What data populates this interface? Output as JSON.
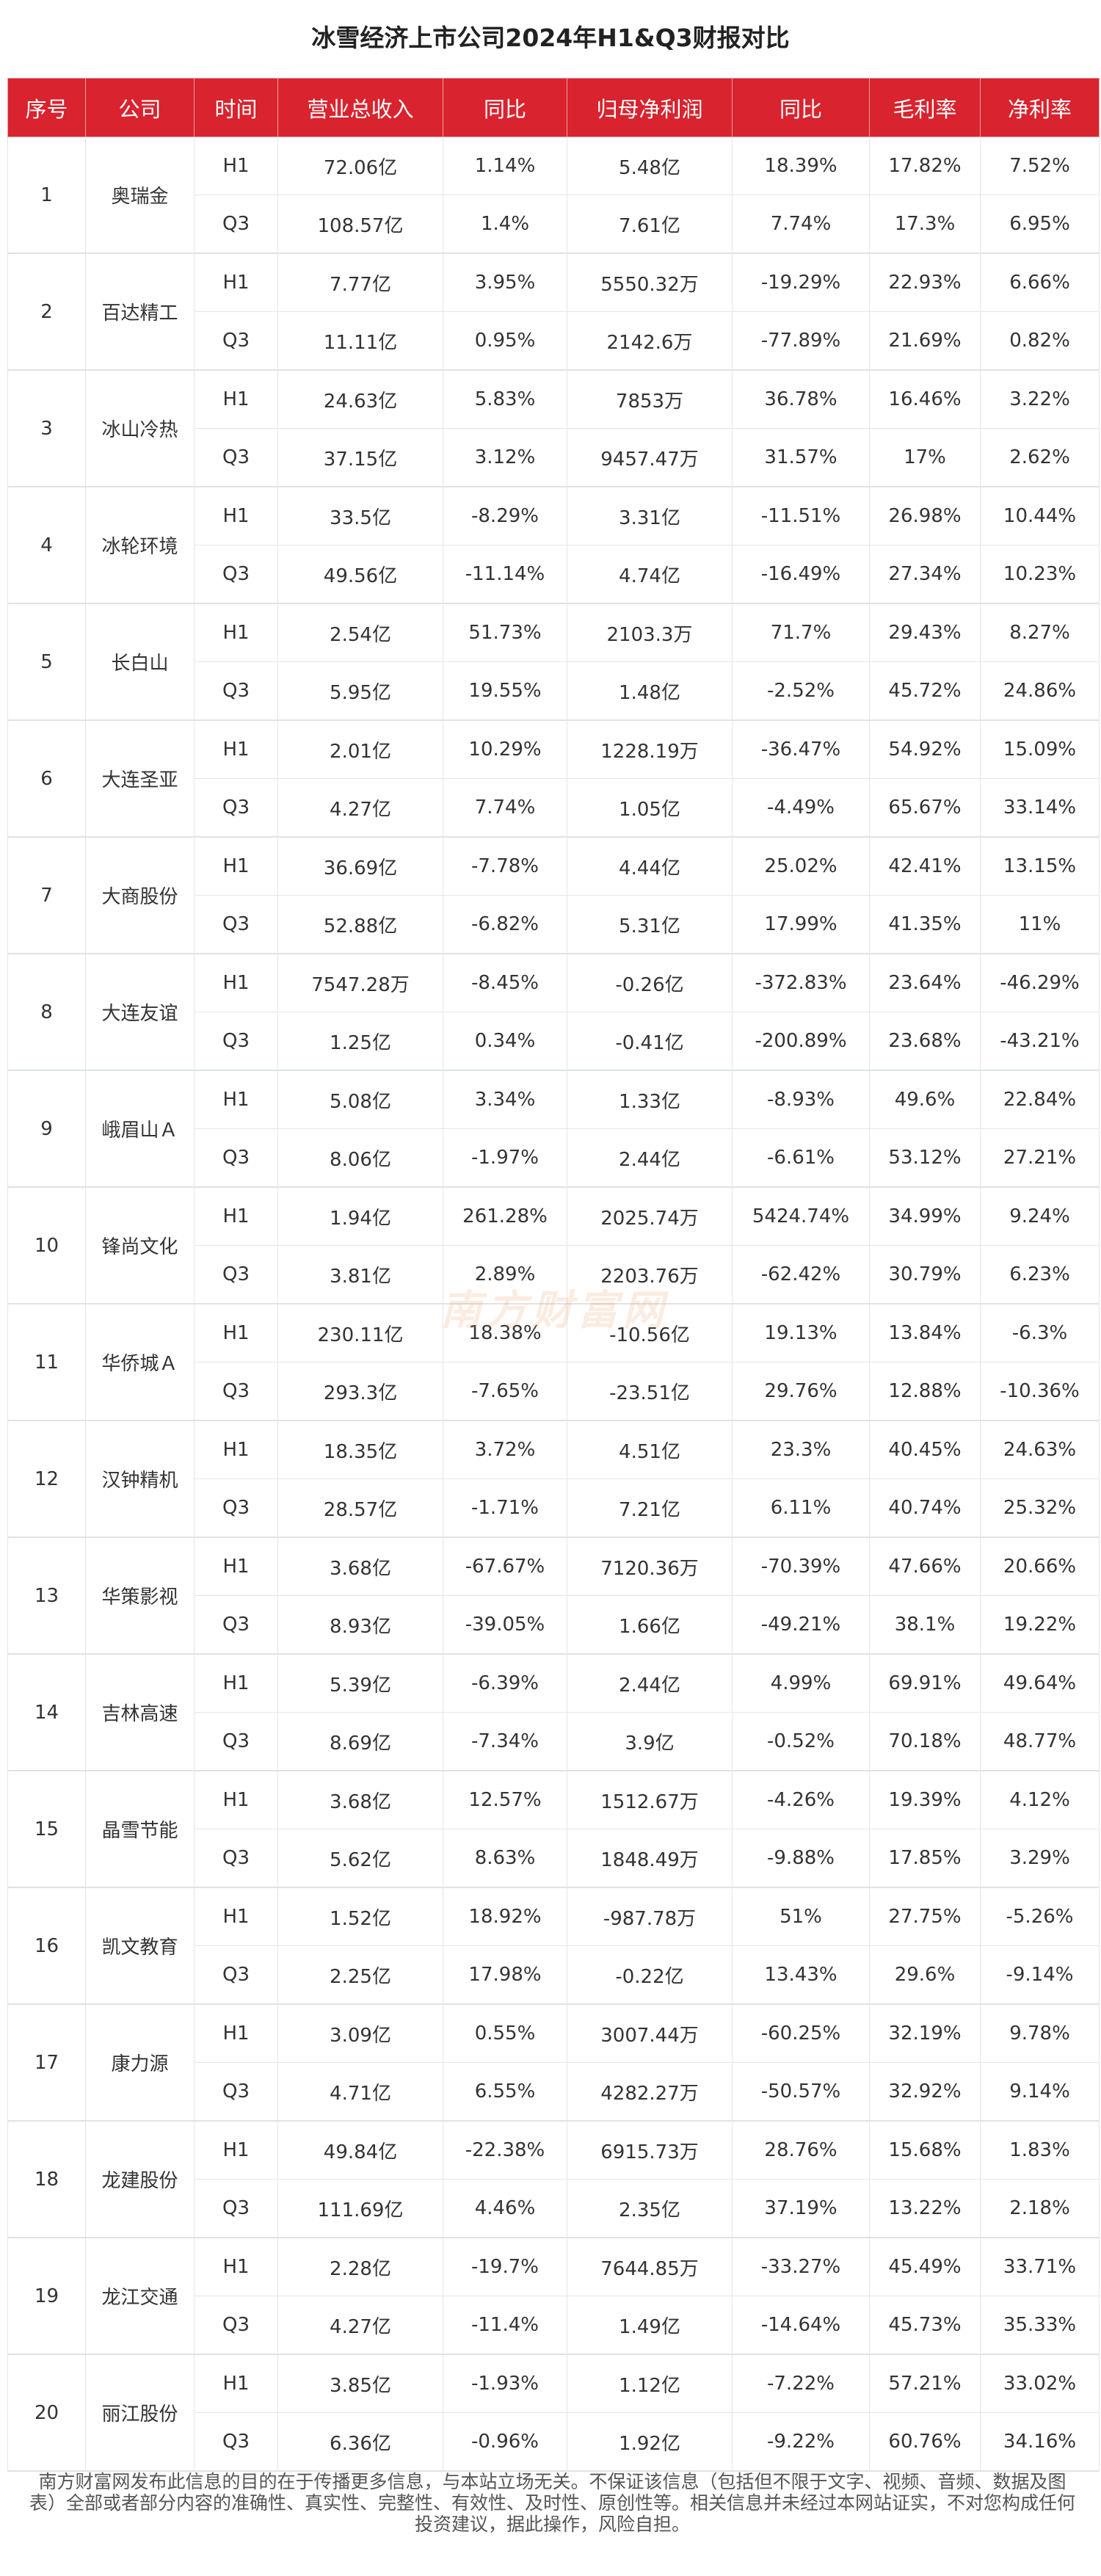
{
  "title": "冰雪经济上市公司2024年H1&Q3财报对比",
  "colors": {
    "header_bg": "#d9232e",
    "header_text": "#ffffff"
  },
  "headers": [
    "序号",
    "公司",
    "时间",
    "营业总收入",
    "同比",
    "归母净利润",
    "同比",
    "毛利率",
    "净利率"
  ],
  "rows": [
    {
      "no": "1",
      "company": "奥瑞金",
      "h1": [
        "H1",
        "72.06亿",
        "1.14%",
        "5.48亿",
        "18.39%",
        "17.82%",
        "7.52%"
      ],
      "q3": [
        "Q3",
        "108.57亿",
        "1.4%",
        "7.61亿",
        "7.74%",
        "17.3%",
        "6.95%"
      ]
    },
    {
      "no": "2",
      "company": "百达精工",
      "h1": [
        "H1",
        "7.77亿",
        "3.95%",
        "5550.32万",
        "-19.29%",
        "22.93%",
        "6.66%"
      ],
      "q3": [
        "Q3",
        "11.11亿",
        "0.95%",
        "2142.6万",
        "-77.89%",
        "21.69%",
        "0.82%"
      ]
    },
    {
      "no": "3",
      "company": "冰山冷热",
      "h1": [
        "H1",
        "24.63亿",
        "5.83%",
        "7853万",
        "36.78%",
        "16.46%",
        "3.22%"
      ],
      "q3": [
        "Q3",
        "37.15亿",
        "3.12%",
        "9457.47万",
        "31.57%",
        "17%",
        "2.62%"
      ]
    },
    {
      "no": "4",
      "company": "冰轮环境",
      "h1": [
        "H1",
        "33.5亿",
        "-8.29%",
        "3.31亿",
        "-11.51%",
        "26.98%",
        "10.44%"
      ],
      "q3": [
        "Q3",
        "49.56亿",
        "-11.14%",
        "4.74亿",
        "-16.49%",
        "27.34%",
        "10.23%"
      ]
    },
    {
      "no": "5",
      "company": "长白山",
      "h1": [
        "H1",
        "2.54亿",
        "51.73%",
        "2103.3万",
        "71.7%",
        "29.43%",
        "8.27%"
      ],
      "q3": [
        "Q3",
        "5.95亿",
        "19.55%",
        "1.48亿",
        "-2.52%",
        "45.72%",
        "24.86%"
      ]
    },
    {
      "no": "6",
      "company": "大连圣亚",
      "h1": [
        "H1",
        "2.01亿",
        "10.29%",
        "1228.19万",
        "-36.47%",
        "54.92%",
        "15.09%"
      ],
      "q3": [
        "Q3",
        "4.27亿",
        "7.74%",
        "1.05亿",
        "-4.49%",
        "65.67%",
        "33.14%"
      ]
    },
    {
      "no": "7",
      "company": "大商股份",
      "h1": [
        "H1",
        "36.69亿",
        "-7.78%",
        "4.44亿",
        "25.02%",
        "42.41%",
        "13.15%"
      ],
      "q3": [
        "Q3",
        "52.88亿",
        "-6.82%",
        "5.31亿",
        "17.99%",
        "41.35%",
        "11%"
      ]
    },
    {
      "no": "8",
      "company": "大连友谊",
      "h1": [
        "H1",
        "7547.28万",
        "-8.45%",
        "-0.26亿",
        "-372.83%",
        "23.64%",
        "-46.29%"
      ],
      "q3": [
        "Q3",
        "1.25亿",
        "0.34%",
        "-0.41亿",
        "-200.89%",
        "23.68%",
        "-43.21%"
      ]
    },
    {
      "no": "9",
      "company": "峨眉山Ａ",
      "h1": [
        "H1",
        "5.08亿",
        "3.34%",
        "1.33亿",
        "-8.93%",
        "49.6%",
        "22.84%"
      ],
      "q3": [
        "Q3",
        "8.06亿",
        "-1.97%",
        "2.44亿",
        "-6.61%",
        "53.12%",
        "27.21%"
      ]
    },
    {
      "no": "10",
      "company": "锋尚文化",
      "h1": [
        "H1",
        "1.94亿",
        "261.28%",
        "2025.74万",
        "5424.74%",
        "34.99%",
        "9.24%"
      ],
      "q3": [
        "Q3",
        "3.81亿",
        "2.89%",
        "2203.76万",
        "-62.42%",
        "30.79%",
        "6.23%"
      ]
    },
    {
      "no": "11",
      "company": "华侨城Ａ",
      "h1": [
        "H1",
        "230.11亿",
        "18.38%",
        "-10.56亿",
        "19.13%",
        "13.84%",
        "-6.3%"
      ],
      "q3": [
        "Q3",
        "293.3亿",
        "-7.65%",
        "-23.51亿",
        "29.76%",
        "12.88%",
        "-10.36%"
      ]
    },
    {
      "no": "12",
      "company": "汉钟精机",
      "h1": [
        "H1",
        "18.35亿",
        "3.72%",
        "4.51亿",
        "23.3%",
        "40.45%",
        "24.63%"
      ],
      "q3": [
        "Q3",
        "28.57亿",
        "-1.71%",
        "7.21亿",
        "6.11%",
        "40.74%",
        "25.32%"
      ]
    },
    {
      "no": "13",
      "company": "华策影视",
      "h1": [
        "H1",
        "3.68亿",
        "-67.67%",
        "7120.36万",
        "-70.39%",
        "47.66%",
        "20.66%"
      ],
      "q3": [
        "Q3",
        "8.93亿",
        "-39.05%",
        "1.66亿",
        "-49.21%",
        "38.1%",
        "19.22%"
      ]
    },
    {
      "no": "14",
      "company": "吉林高速",
      "h1": [
        "H1",
        "5.39亿",
        "-6.39%",
        "2.44亿",
        "4.99%",
        "69.91%",
        "49.64%"
      ],
      "q3": [
        "Q3",
        "8.69亿",
        "-7.34%",
        "3.9亿",
        "-0.52%",
        "70.18%",
        "48.77%"
      ]
    },
    {
      "no": "15",
      "company": "晶雪节能",
      "h1": [
        "H1",
        "3.68亿",
        "12.57%",
        "1512.67万",
        "-4.26%",
        "19.39%",
        "4.12%"
      ],
      "q3": [
        "Q3",
        "5.62亿",
        "8.63%",
        "1848.49万",
        "-9.88%",
        "17.85%",
        "3.29%"
      ]
    },
    {
      "no": "16",
      "company": "凯文教育",
      "h1": [
        "H1",
        "1.52亿",
        "18.92%",
        "-987.78万",
        "51%",
        "27.75%",
        "-5.26%"
      ],
      "q3": [
        "Q3",
        "2.25亿",
        "17.98%",
        "-0.22亿",
        "13.43%",
        "29.6%",
        "-9.14%"
      ]
    },
    {
      "no": "17",
      "company": "康力源",
      "h1": [
        "H1",
        "3.09亿",
        "0.55%",
        "3007.44万",
        "-60.25%",
        "32.19%",
        "9.78%"
      ],
      "q3": [
        "Q3",
        "4.71亿",
        "6.55%",
        "4282.27万",
        "-50.57%",
        "32.92%",
        "9.14%"
      ]
    },
    {
      "no": "18",
      "company": "龙建股份",
      "h1": [
        "H1",
        "49.84亿",
        "-22.38%",
        "6915.73万",
        "28.76%",
        "15.68%",
        "1.83%"
      ],
      "q3": [
        "Q3",
        "111.69亿",
        "4.46%",
        "2.35亿",
        "37.19%",
        "13.22%",
        "2.18%"
      ]
    },
    {
      "no": "19",
      "company": "龙江交通",
      "h1": [
        "H1",
        "2.28亿",
        "-19.7%",
        "7644.85万",
        "-33.27%",
        "45.49%",
        "33.71%"
      ],
      "q3": [
        "Q3",
        "4.27亿",
        "-11.4%",
        "1.49亿",
        "-14.64%",
        "45.73%",
        "35.33%"
      ]
    },
    {
      "no": "20",
      "company": "丽江股份",
      "h1": [
        "H1",
        "3.85亿",
        "-1.93%",
        "1.12亿",
        "-7.22%",
        "57.21%",
        "33.02%"
      ],
      "q3": [
        "Q3",
        "6.36亿",
        "-0.96%",
        "1.92亿",
        "-9.22%",
        "60.76%",
        "34.16%"
      ]
    }
  ],
  "watermark": "南方财富网",
  "footer": "南方财富网发布此信息的目的在于传播更多信息，与本站立场无关。不保证该信息（包括但不限于文字、视频、音频、数据及图表）全部或者部分内容的准确性、真实性、完整性、有效性、及时性、原创性等。相关信息并未经过本网站证实，不对您构成任何投资建议，据此操作，风险自担。"
}
